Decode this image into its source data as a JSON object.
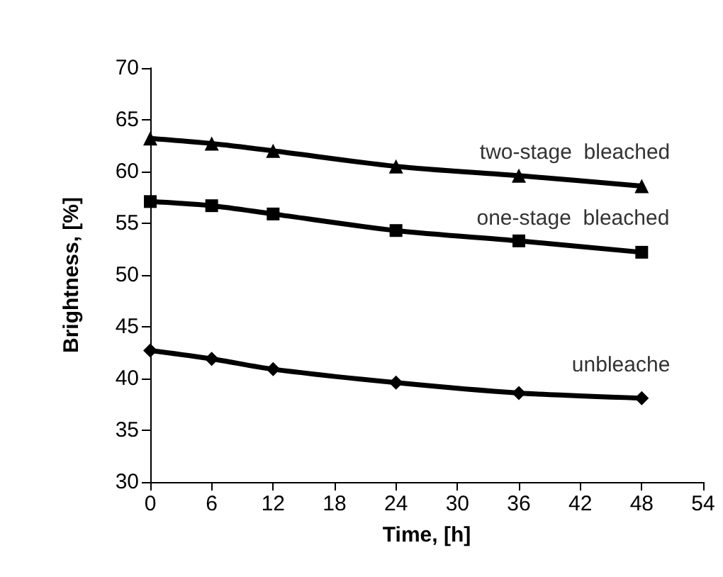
{
  "chart_data": {
    "type": "line",
    "xlabel": "Time, [h]",
    "ylabel": "Brightness, [%]",
    "xlim": [
      0,
      54
    ],
    "xticks": [
      0,
      6,
      12,
      18,
      24,
      30,
      36,
      42,
      48,
      54
    ],
    "ylim": [
      30,
      70
    ],
    "yticks": [
      30,
      35,
      40,
      45,
      50,
      55,
      60,
      65,
      70
    ],
    "grid": false,
    "legend": false,
    "series": [
      {
        "name": "two-stage  bleached",
        "color": "#000000",
        "marker": "triangle",
        "x": [
          0,
          6,
          12,
          24,
          36,
          48
        ],
        "values": [
          63.2,
          62.7,
          62.0,
          60.5,
          59.6,
          58.6
        ]
      },
      {
        "name": "one-stage  bleached",
        "color": "#000000",
        "marker": "square",
        "x": [
          0,
          6,
          12,
          24,
          36,
          48
        ],
        "values": [
          57.1,
          56.7,
          55.9,
          54.3,
          53.3,
          52.2
        ]
      },
      {
        "name": "unbleache",
        "color": "#000000",
        "marker": "diamond",
        "x": [
          0,
          6,
          12,
          24,
          36,
          48
        ],
        "values": [
          42.7,
          41.9,
          40.9,
          39.6,
          38.6,
          38.1
        ]
      }
    ]
  }
}
